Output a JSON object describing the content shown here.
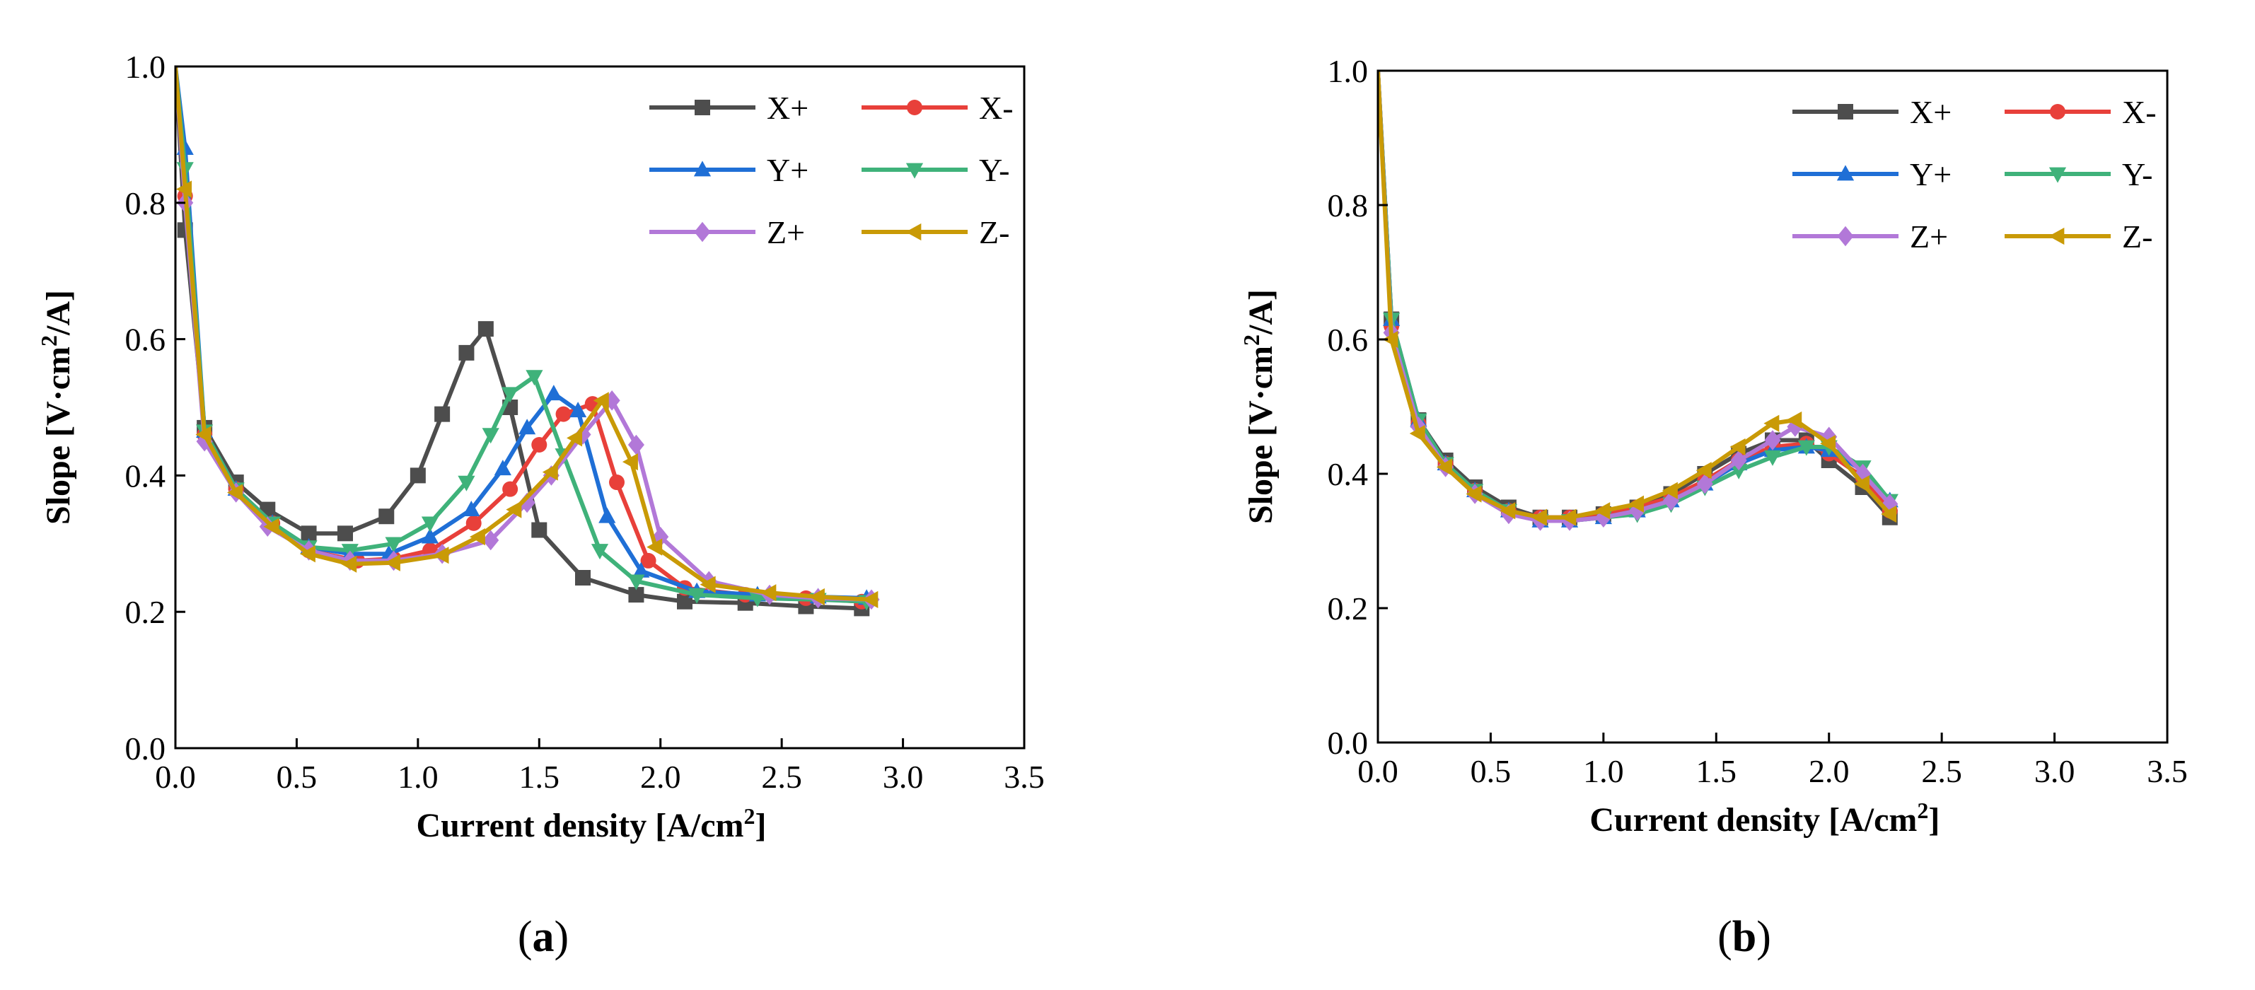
{
  "chart_data": [
    {
      "type": "line",
      "panel_label_open": "(",
      "panel_label_letter": "a",
      "panel_label_close": ")",
      "xlabel": "Current density [A/cm",
      "xlabel_sup": "2",
      "xlabel_end": "]",
      "ylabel": "Slope [V·cm",
      "ylabel_sup": "2",
      "ylabel_end": "/A]",
      "xlim": [
        0,
        3.5
      ],
      "ylim": [
        0,
        1.0
      ],
      "xticks": [
        "0.0",
        "0.5",
        "1.0",
        "1.5",
        "2.0",
        "2.5",
        "3.0",
        "3.5"
      ],
      "yticks": [
        "0.0",
        "0.2",
        "0.4",
        "0.6",
        "0.8",
        "1.0"
      ],
      "legend_position": "top-right",
      "series": [
        {
          "name": "X+",
          "color": "#4d4d4d",
          "marker": "square",
          "x": [
            0.0,
            0.04,
            0.12,
            0.25,
            0.38,
            0.55,
            0.7,
            0.87,
            1.0,
            1.1,
            1.2,
            1.28,
            1.38,
            1.5,
            1.68,
            1.9,
            2.1,
            2.35,
            2.6,
            2.83
          ],
          "y": [
            1.0,
            0.76,
            0.47,
            0.39,
            0.35,
            0.315,
            0.315,
            0.34,
            0.4,
            0.49,
            0.58,
            0.615,
            0.5,
            0.32,
            0.25,
            0.225,
            0.215,
            0.213,
            0.208,
            0.205
          ]
        },
        {
          "name": "X-",
          "color": "#e8403a",
          "marker": "circle",
          "x": [
            0.0,
            0.04,
            0.12,
            0.25,
            0.4,
            0.55,
            0.75,
            0.9,
            1.05,
            1.23,
            1.38,
            1.5,
            1.6,
            1.72,
            1.82,
            1.95,
            2.1,
            2.35,
            2.6,
            2.83
          ],
          "y": [
            1.0,
            0.81,
            0.46,
            0.38,
            0.33,
            0.29,
            0.275,
            0.278,
            0.29,
            0.33,
            0.38,
            0.445,
            0.49,
            0.505,
            0.39,
            0.275,
            0.235,
            0.225,
            0.22,
            0.215
          ]
        },
        {
          "name": "Y+",
          "color": "#1f6fd6",
          "marker": "triangle-up",
          "x": [
            0.0,
            0.04,
            0.12,
            0.25,
            0.4,
            0.55,
            0.72,
            0.88,
            1.05,
            1.22,
            1.35,
            1.45,
            1.56,
            1.66,
            1.78,
            1.92,
            2.15,
            2.4,
            2.65,
            2.85
          ],
          "y": [
            1.0,
            0.88,
            0.465,
            0.38,
            0.33,
            0.295,
            0.285,
            0.285,
            0.31,
            0.35,
            0.41,
            0.47,
            0.52,
            0.495,
            0.34,
            0.26,
            0.23,
            0.225,
            0.222,
            0.22
          ]
        },
        {
          "name": "Y-",
          "color": "#3fb27a",
          "marker": "triangle-down",
          "x": [
            0.0,
            0.04,
            0.12,
            0.25,
            0.4,
            0.55,
            0.72,
            0.9,
            1.05,
            1.2,
            1.3,
            1.38,
            1.48,
            1.6,
            1.75,
            1.9,
            2.15,
            2.4,
            2.65,
            2.85
          ],
          "y": [
            1.0,
            0.85,
            0.465,
            0.38,
            0.33,
            0.295,
            0.29,
            0.3,
            0.33,
            0.39,
            0.46,
            0.52,
            0.545,
            0.43,
            0.29,
            0.245,
            0.225,
            0.22,
            0.218,
            0.215
          ]
        },
        {
          "name": "Z+",
          "color": "#b278d8",
          "marker": "diamond",
          "x": [
            0.0,
            0.04,
            0.12,
            0.25,
            0.38,
            0.55,
            0.72,
            0.9,
            1.1,
            1.3,
            1.45,
            1.55,
            1.68,
            1.8,
            1.9,
            2.0,
            2.2,
            2.45,
            2.65,
            2.87
          ],
          "y": [
            1.0,
            0.8,
            0.45,
            0.375,
            0.325,
            0.29,
            0.275,
            0.275,
            0.285,
            0.305,
            0.36,
            0.4,
            0.46,
            0.51,
            0.445,
            0.31,
            0.245,
            0.225,
            0.22,
            0.218
          ]
        },
        {
          "name": "Z-",
          "color": "#c99a06",
          "marker": "triangle-left",
          "x": [
            0.0,
            0.04,
            0.12,
            0.25,
            0.4,
            0.55,
            0.72,
            0.9,
            1.1,
            1.25,
            1.4,
            1.55,
            1.65,
            1.76,
            1.88,
            1.98,
            2.2,
            2.45,
            2.65,
            2.87
          ],
          "y": [
            1.0,
            0.82,
            0.46,
            0.375,
            0.325,
            0.285,
            0.27,
            0.272,
            0.283,
            0.31,
            0.35,
            0.405,
            0.455,
            0.51,
            0.42,
            0.295,
            0.24,
            0.228,
            0.222,
            0.218
          ]
        }
      ]
    },
    {
      "type": "line",
      "panel_label_open": "(",
      "panel_label_letter": "b",
      "panel_label_close": ")",
      "xlabel": "Current density [A/cm",
      "xlabel_sup": "2",
      "xlabel_end": "]",
      "ylabel": "Slope [V·cm",
      "ylabel_sup": "2",
      "ylabel_end": "/A]",
      "xlim": [
        0,
        3.5
      ],
      "ylim": [
        0,
        1.0
      ],
      "xticks": [
        "0.0",
        "0.5",
        "1.0",
        "1.5",
        "2.0",
        "2.5",
        "3.0",
        "3.5"
      ],
      "yticks": [
        "0.0",
        "0.2",
        "0.4",
        "0.6",
        "0.8",
        "1.0"
      ],
      "legend_position": "top-right",
      "series": [
        {
          "name": "X+",
          "color": "#4d4d4d",
          "marker": "square",
          "x": [
            0.0,
            0.06,
            0.18,
            0.3,
            0.43,
            0.58,
            0.72,
            0.85,
            1.0,
            1.15,
            1.3,
            1.45,
            1.6,
            1.75,
            1.9,
            2.0,
            2.15,
            2.27
          ],
          "y": [
            1.0,
            0.63,
            0.48,
            0.42,
            0.38,
            0.35,
            0.335,
            0.335,
            0.34,
            0.35,
            0.37,
            0.4,
            0.43,
            0.45,
            0.45,
            0.42,
            0.38,
            0.335
          ]
        },
        {
          "name": "X-",
          "color": "#e8403a",
          "marker": "circle",
          "x": [
            0.0,
            0.06,
            0.18,
            0.3,
            0.43,
            0.58,
            0.72,
            0.85,
            1.0,
            1.15,
            1.3,
            1.45,
            1.6,
            1.75,
            1.9,
            2.0,
            2.15,
            2.27
          ],
          "y": [
            1.0,
            0.62,
            0.475,
            0.415,
            0.375,
            0.345,
            0.335,
            0.335,
            0.34,
            0.35,
            0.365,
            0.39,
            0.42,
            0.44,
            0.445,
            0.43,
            0.395,
            0.345
          ]
        },
        {
          "name": "Y+",
          "color": "#1f6fd6",
          "marker": "triangle-up",
          "x": [
            0.0,
            0.06,
            0.18,
            0.3,
            0.43,
            0.58,
            0.72,
            0.85,
            1.0,
            1.15,
            1.3,
            1.45,
            1.6,
            1.75,
            1.9,
            2.0,
            2.15,
            2.27
          ],
          "y": [
            1.0,
            0.63,
            0.48,
            0.415,
            0.375,
            0.345,
            0.33,
            0.33,
            0.335,
            0.345,
            0.36,
            0.385,
            0.415,
            0.435,
            0.44,
            0.435,
            0.405,
            0.36
          ]
        },
        {
          "name": "Y-",
          "color": "#3fb27a",
          "marker": "triangle-down",
          "x": [
            0.0,
            0.06,
            0.18,
            0.3,
            0.43,
            0.58,
            0.72,
            0.85,
            1.0,
            1.15,
            1.3,
            1.45,
            1.6,
            1.75,
            1.9,
            2.0,
            2.15,
            2.27
          ],
          "y": [
            1.0,
            0.63,
            0.48,
            0.415,
            0.375,
            0.345,
            0.33,
            0.33,
            0.335,
            0.34,
            0.355,
            0.38,
            0.405,
            0.425,
            0.44,
            0.44,
            0.41,
            0.36
          ]
        },
        {
          "name": "Z+",
          "color": "#b278d8",
          "marker": "diamond",
          "x": [
            0.0,
            0.06,
            0.18,
            0.3,
            0.43,
            0.58,
            0.72,
            0.85,
            1.0,
            1.15,
            1.3,
            1.45,
            1.6,
            1.75,
            1.85,
            2.0,
            2.15,
            2.27
          ],
          "y": [
            1.0,
            0.61,
            0.47,
            0.41,
            0.37,
            0.34,
            0.33,
            0.33,
            0.335,
            0.345,
            0.36,
            0.385,
            0.42,
            0.45,
            0.47,
            0.455,
            0.4,
            0.355
          ]
        },
        {
          "name": "Z-",
          "color": "#c99a06",
          "marker": "triangle-left",
          "x": [
            0.0,
            0.06,
            0.18,
            0.3,
            0.43,
            0.58,
            0.72,
            0.85,
            1.0,
            1.15,
            1.3,
            1.45,
            1.6,
            1.75,
            1.85,
            2.0,
            2.15,
            2.27
          ],
          "y": [
            1.0,
            0.6,
            0.46,
            0.41,
            0.37,
            0.345,
            0.335,
            0.335,
            0.345,
            0.355,
            0.375,
            0.405,
            0.44,
            0.475,
            0.48,
            0.445,
            0.385,
            0.34
          ]
        }
      ]
    }
  ]
}
